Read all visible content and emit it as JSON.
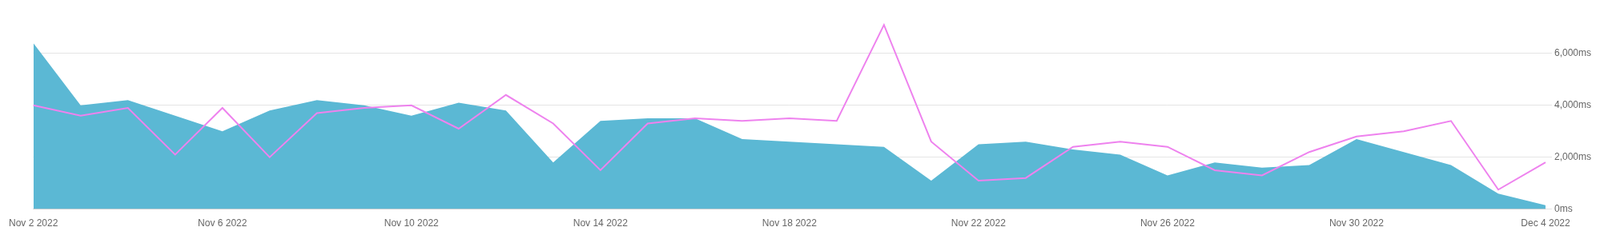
{
  "chart_data": {
    "type": "line",
    "categories": [
      "Nov 2 2022",
      null,
      null,
      null,
      "Nov 6 2022",
      null,
      null,
      null,
      "Nov 10 2022",
      null,
      null,
      null,
      "Nov 14 2022",
      null,
      null,
      null,
      "Nov 18 2022",
      null,
      null,
      null,
      "Nov 22 2022",
      null,
      null,
      null,
      "Nov 26 2022",
      null,
      null,
      null,
      "Nov 30 2022",
      null,
      null,
      null,
      "Dec 4 2022"
    ],
    "series": [
      {
        "type": "area",
        "color": "#5bb8d4",
        "values": [
          6400,
          4000,
          4200,
          3600,
          3000,
          3800,
          4200,
          4000,
          3600,
          4100,
          3800,
          1800,
          3400,
          3500,
          3500,
          2700,
          2600,
          2500,
          2400,
          1100,
          2500,
          2600,
          2300,
          2100,
          1300,
          1800,
          1600,
          1700,
          2700,
          2200,
          1700,
          600,
          150
        ]
      },
      {
        "type": "line",
        "color": "#ee82ee",
        "values": [
          4000,
          3600,
          3900,
          2100,
          3900,
          2000,
          3700,
          3900,
          4000,
          3100,
          4400,
          3300,
          1500,
          3300,
          3500,
          3400,
          3500,
          3400,
          7100,
          2600,
          1100,
          1200,
          2400,
          2600,
          2400,
          1500,
          1300,
          2200,
          2800,
          3000,
          3400,
          750,
          1800
        ]
      }
    ],
    "ylim": [
      0,
      7500
    ],
    "yticks": [
      {
        "value": 0,
        "label": "0ms"
      },
      {
        "value": 2000,
        "label": "2,000ms"
      },
      {
        "value": 4000,
        "label": "4,000ms"
      },
      {
        "value": 6000,
        "label": "6,000ms"
      }
    ],
    "grid": "y"
  }
}
